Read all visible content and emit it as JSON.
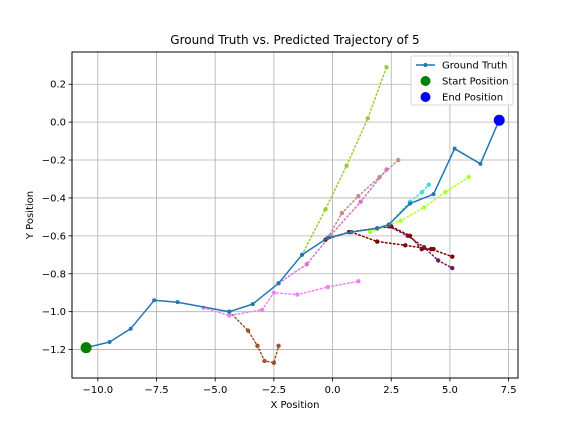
{
  "chart_data": {
    "type": "line",
    "title": "Ground Truth vs. Predicted Trajectory of 5",
    "xlabel": "X Position",
    "ylabel": "Y Position",
    "xlim": [
      -11.1,
      7.9
    ],
    "ylim": [
      -1.35,
      0.37
    ],
    "xticks": [
      -10.0,
      -7.5,
      -5.0,
      -2.5,
      0.0,
      2.5,
      5.0,
      7.5
    ],
    "xtick_labels": [
      "−10.0",
      "−7.5",
      "−5.0",
      "−2.5",
      "0.0",
      "2.5",
      "5.0",
      "7.5"
    ],
    "yticks": [
      -1.2,
      -1.0,
      -0.8,
      -0.6,
      -0.4,
      -0.2,
      0.0,
      0.2
    ],
    "ytick_labels": [
      "−1.2",
      "−1.0",
      "−0.8",
      "−0.6",
      "−0.4",
      "−0.2",
      "0.0",
      "0.2"
    ],
    "grid": true,
    "legend_position": "top-right",
    "legend": [
      {
        "label": "Ground Truth",
        "kind": "line-marker",
        "color": "#1f77b4"
      },
      {
        "label": "Start Position",
        "kind": "dot",
        "color": "#008000"
      },
      {
        "label": "End Position",
        "kind": "dot",
        "color": "#0000ff"
      }
    ],
    "ground_truth": {
      "color": "#1f77b4",
      "x": [
        -10.5,
        -9.5,
        -8.6,
        -7.6,
        -6.6,
        -4.4,
        -3.4,
        -2.3,
        -1.3,
        -0.2,
        0.8,
        1.9,
        2.4,
        3.3,
        4.3,
        5.2,
        6.3,
        7.1
      ],
      "y": [
        -1.19,
        -1.16,
        -1.09,
        -0.94,
        -0.95,
        -1.0,
        -0.96,
        -0.85,
        -0.7,
        -0.61,
        -0.58,
        -0.56,
        -0.54,
        -0.43,
        -0.38,
        -0.14,
        -0.22,
        0.01
      ]
    },
    "start": {
      "x": -10.5,
      "y": -1.19,
      "color": "#008000"
    },
    "end": {
      "x": 7.1,
      "y": 0.01,
      "color": "#0000ff"
    },
    "predictions": [
      {
        "color": "#9acd32",
        "x": [
          -1.3,
          -0.3,
          0.6,
          1.5,
          2.3
        ],
        "y": [
          -0.7,
          -0.46,
          -0.23,
          0.02,
          0.29
        ]
      },
      {
        "color": "#a0522d",
        "x": [
          -4.4,
          -3.6,
          -3.2,
          -2.9,
          -2.5,
          -2.3
        ],
        "y": [
          -1.0,
          -1.1,
          -1.18,
          -1.26,
          -1.27,
          -1.18
        ]
      },
      {
        "color": "#ee82ee",
        "x": [
          -5.5,
          -4.4,
          -3.0,
          -2.5,
          -1.5,
          -0.2,
          1.1
        ],
        "y": [
          -0.98,
          -1.02,
          -0.99,
          -0.9,
          -0.91,
          -0.87,
          -0.84
        ]
      },
      {
        "color": "#da70d6",
        "x": [
          -2.3,
          -1.1,
          -0.1,
          1.2,
          2.3
        ],
        "y": [
          -0.85,
          -0.75,
          -0.6,
          -0.42,
          -0.25
        ]
      },
      {
        "color": "#bc8f8f",
        "x": [
          -0.2,
          0.4,
          1.1,
          2.0,
          2.8
        ],
        "y": [
          -0.61,
          -0.48,
          -0.39,
          -0.29,
          -0.2
        ]
      },
      {
        "color": "#800000",
        "x": [
          0.8,
          1.9,
          3.1,
          4.2,
          5.1
        ],
        "y": [
          -0.58,
          -0.63,
          -0.65,
          -0.67,
          -0.71
        ]
      },
      {
        "color": "#6b1f6b",
        "x": [
          1.9,
          2.4,
          3.2,
          3.9,
          4.5,
          5.1
        ],
        "y": [
          -0.56,
          -0.55,
          -0.6,
          -0.66,
          -0.73,
          -0.77
        ]
      },
      {
        "color": "#8b0000",
        "x": [
          -0.3,
          0.7,
          2.5,
          3.3,
          3.8,
          4.3
        ],
        "y": [
          -0.62,
          -0.58,
          -0.55,
          -0.6,
          -0.67,
          -0.67
        ]
      },
      {
        "color": "#adff2f",
        "x": [
          1.6,
          2.9,
          3.9,
          4.8,
          5.8
        ],
        "y": [
          -0.58,
          -0.52,
          -0.45,
          -0.37,
          -0.29
        ]
      },
      {
        "color": "#40e0d0",
        "x": [
          2.4,
          3.3,
          3.8,
          4.1
        ],
        "y": [
          -0.54,
          -0.42,
          -0.37,
          -0.33
        ]
      }
    ]
  }
}
